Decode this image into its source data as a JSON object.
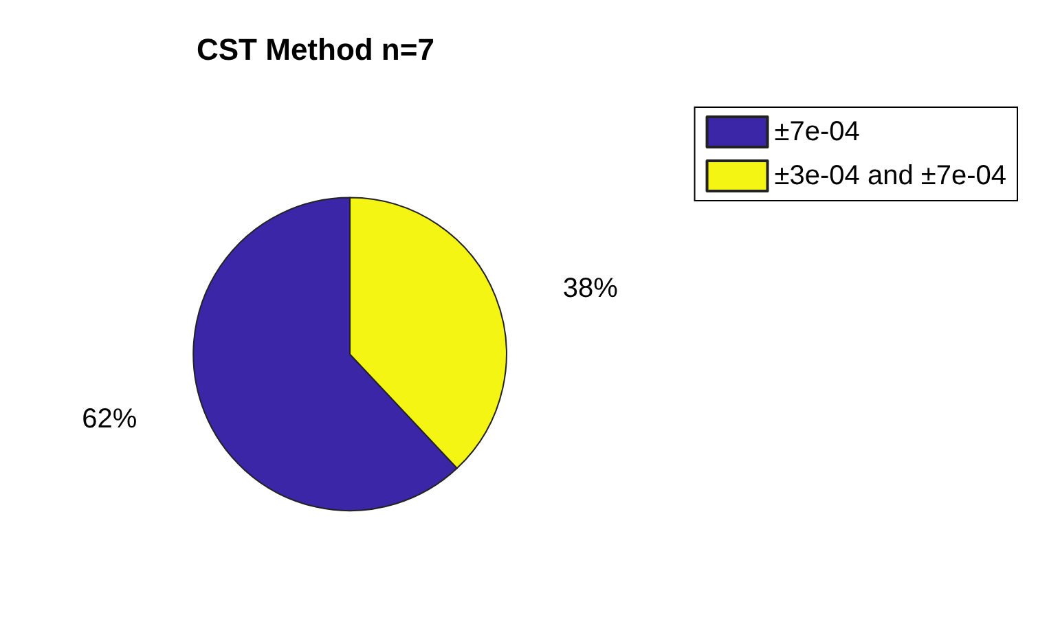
{
  "chart_data": {
    "type": "pie",
    "title": "CST Method n=7",
    "categories": [
      "±7e-04",
      "±3e-04 and ±7e-04"
    ],
    "values": [
      62,
      38
    ],
    "colors": [
      "#3a26a6",
      "#f5f514"
    ],
    "value_labels": [
      "62%",
      "38%"
    ],
    "legend": "top right"
  }
}
